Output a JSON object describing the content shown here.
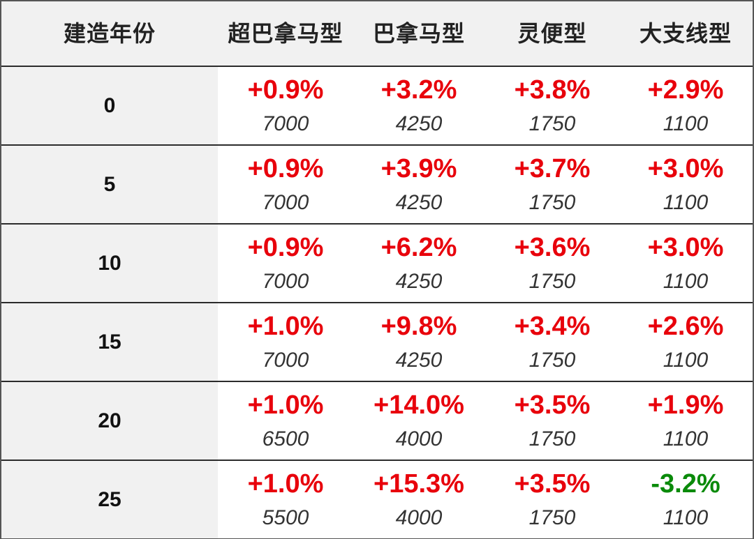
{
  "header": {
    "year": "建造年份",
    "col1": "超巴拿马型",
    "col2": "巴拿马型",
    "col3": "灵便型",
    "col4": "大支线型"
  },
  "colors": {
    "positive": "#e8000b",
    "negative": "#0a8a0a"
  },
  "rows": [
    {
      "year": "0",
      "cells": [
        {
          "pct": "+0.9%",
          "val": "7000"
        },
        {
          "pct": "+3.2%",
          "val": "4250"
        },
        {
          "pct": "+3.8%",
          "val": "1750"
        },
        {
          "pct": "+2.9%",
          "val": "1100"
        }
      ]
    },
    {
      "year": "5",
      "cells": [
        {
          "pct": "+0.9%",
          "val": "7000"
        },
        {
          "pct": "+3.9%",
          "val": "4250"
        },
        {
          "pct": "+3.7%",
          "val": "1750"
        },
        {
          "pct": "+3.0%",
          "val": "1100"
        }
      ]
    },
    {
      "year": "10",
      "cells": [
        {
          "pct": "+0.9%",
          "val": "7000"
        },
        {
          "pct": "+6.2%",
          "val": "4250"
        },
        {
          "pct": "+3.6%",
          "val": "1750"
        },
        {
          "pct": "+3.0%",
          "val": "1100"
        }
      ]
    },
    {
      "year": "15",
      "cells": [
        {
          "pct": "+1.0%",
          "val": "7000"
        },
        {
          "pct": "+9.8%",
          "val": "4250"
        },
        {
          "pct": "+3.4%",
          "val": "1750"
        },
        {
          "pct": "+2.6%",
          "val": "1100"
        }
      ]
    },
    {
      "year": "20",
      "cells": [
        {
          "pct": "+1.0%",
          "val": "6500"
        },
        {
          "pct": "+14.0%",
          "val": "4000"
        },
        {
          "pct": "+3.5%",
          "val": "1750"
        },
        {
          "pct": "+1.9%",
          "val": "1100"
        }
      ]
    },
    {
      "year": "25",
      "cells": [
        {
          "pct": "+1.0%",
          "val": "5500"
        },
        {
          "pct": "+15.3%",
          "val": "4000"
        },
        {
          "pct": "+3.5%",
          "val": "1750"
        },
        {
          "pct": "-3.2%",
          "val": "1100"
        }
      ]
    }
  ]
}
